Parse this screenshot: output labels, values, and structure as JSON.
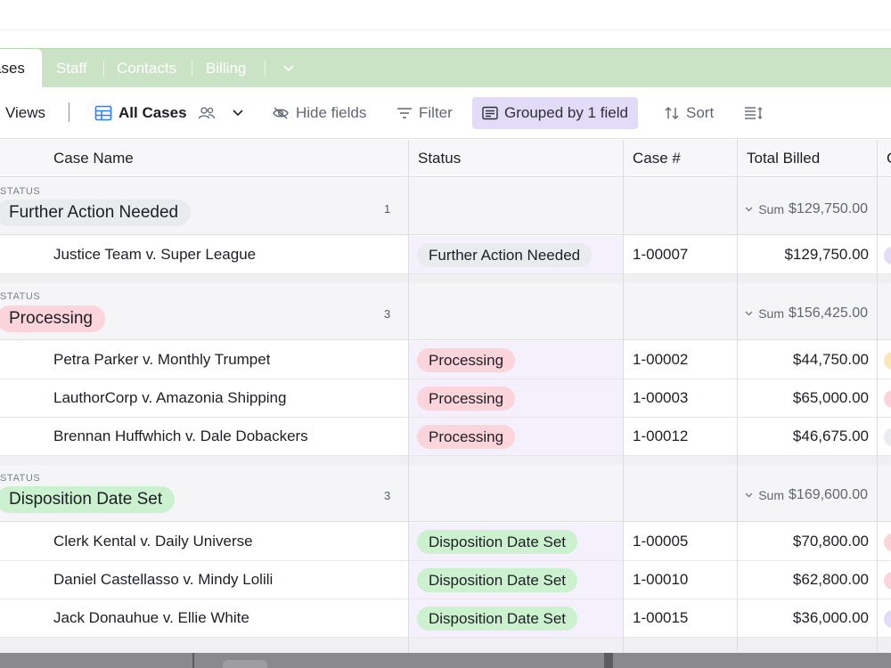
{
  "tabs": {
    "active": "ases",
    "items": [
      "Staff",
      "Contacts",
      "Billing"
    ]
  },
  "toolbar": {
    "views_label": "Views",
    "view_name": "All Cases",
    "hide_fields": "Hide fields",
    "filter": "Filter",
    "grouped": "Grouped by 1 field",
    "sort": "Sort"
  },
  "columns": {
    "case_name": "Case Name",
    "status": "Status",
    "case_num": "Case #",
    "total_billed": "Total Billed",
    "next": "C"
  },
  "group_field_label": "STATUS",
  "groups": [
    {
      "name": "Further Action Needed",
      "color": "#e9ebef",
      "count": "1",
      "sum_label": "Sum",
      "sum": "$129,750.00",
      "rows": [
        {
          "name": "Justice Team v. Super League",
          "status": "Further Action Needed",
          "case": "1-00007",
          "billed": "$129,750.00",
          "edge": "#e2dcf8"
        }
      ]
    },
    {
      "name": "Processing",
      "color": "#fcd4dc",
      "count": "3",
      "sum_label": "Sum",
      "sum": "$156,425.00",
      "rows": [
        {
          "name": "Petra Parker v. Monthly Trumpet",
          "status": "Processing",
          "case": "1-00002",
          "billed": "$44,750.00",
          "edge": "#fbe6b5"
        },
        {
          "name": "LauthorCorp v. Amazonia Shipping",
          "status": "Processing",
          "case": "1-00003",
          "billed": "$65,000.00",
          "edge": "#fcd4dc"
        },
        {
          "name": "Brennan Huffwhich v. Dale Dobackers",
          "status": "Processing",
          "case": "1-00012",
          "billed": "$46,675.00",
          "edge": "#e9ebef"
        }
      ]
    },
    {
      "name": "Disposition Date Set",
      "color": "#ccf1cf",
      "count": "3",
      "sum_label": "Sum",
      "sum": "$169,600.00",
      "rows": [
        {
          "name": "Clerk Kental v. Daily Universe",
          "status": "Disposition Date Set",
          "case": "1-00005",
          "billed": "$70,800.00",
          "edge": "#fcd4dc"
        },
        {
          "name": "Daniel Castellasso v. Mindy Lolili",
          "status": "Disposition Date Set",
          "case": "1-00010",
          "billed": "$62,800.00",
          "edge": "#fcd4dc"
        },
        {
          "name": "Jack Donauhue v. Ellie White",
          "status": "Disposition Date Set",
          "case": "1-00015",
          "billed": "$36,000.00",
          "edge": "#e2dcf8"
        }
      ]
    }
  ]
}
